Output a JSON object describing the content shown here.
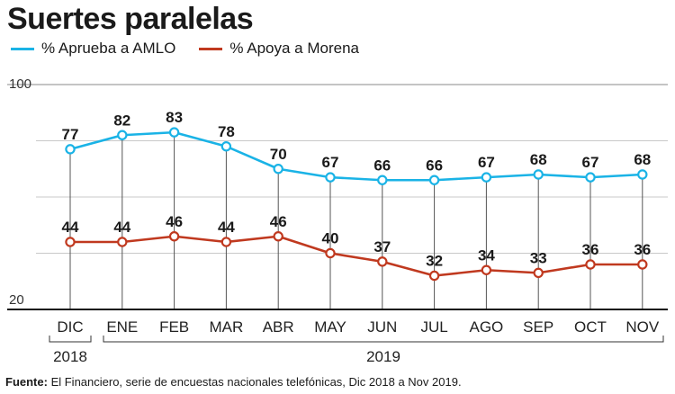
{
  "header": {
    "title": "Suertes paralelas"
  },
  "legend": [
    {
      "label": "% Aprueba a AMLO",
      "color": "#1ab3e6"
    },
    {
      "label": "% Apoya a Morena",
      "color": "#c0391f"
    }
  ],
  "chart_data": {
    "type": "line",
    "title": "Suertes paralelas",
    "categories": [
      "DIC",
      "ENE",
      "FEB",
      "MAR",
      "ABR",
      "MAY",
      "JUN",
      "JUL",
      "AGO",
      "SEP",
      "OCT",
      "NOV"
    ],
    "series": [
      {
        "name": "% Aprueba a AMLO",
        "values": [
          77,
          82,
          83,
          78,
          70,
          67,
          66,
          66,
          67,
          68,
          67,
          68
        ],
        "color": "#1ab3e6"
      },
      {
        "name": "% Apoya a Morena",
        "values": [
          44,
          44,
          46,
          44,
          46,
          40,
          37,
          32,
          34,
          33,
          36,
          36
        ],
        "color": "#c0391f"
      }
    ],
    "ylim": [
      20,
      100
    ],
    "ytick_labels": [
      "100",
      "20"
    ],
    "gridlines": [
      40,
      60,
      80
    ],
    "year_labels": [
      "2018",
      "2019"
    ]
  },
  "source": {
    "label": "Fuente:",
    "text": " El Financiero, serie de encuestas nacionales telefónicas, Dic 2018 a Nov 2019."
  }
}
